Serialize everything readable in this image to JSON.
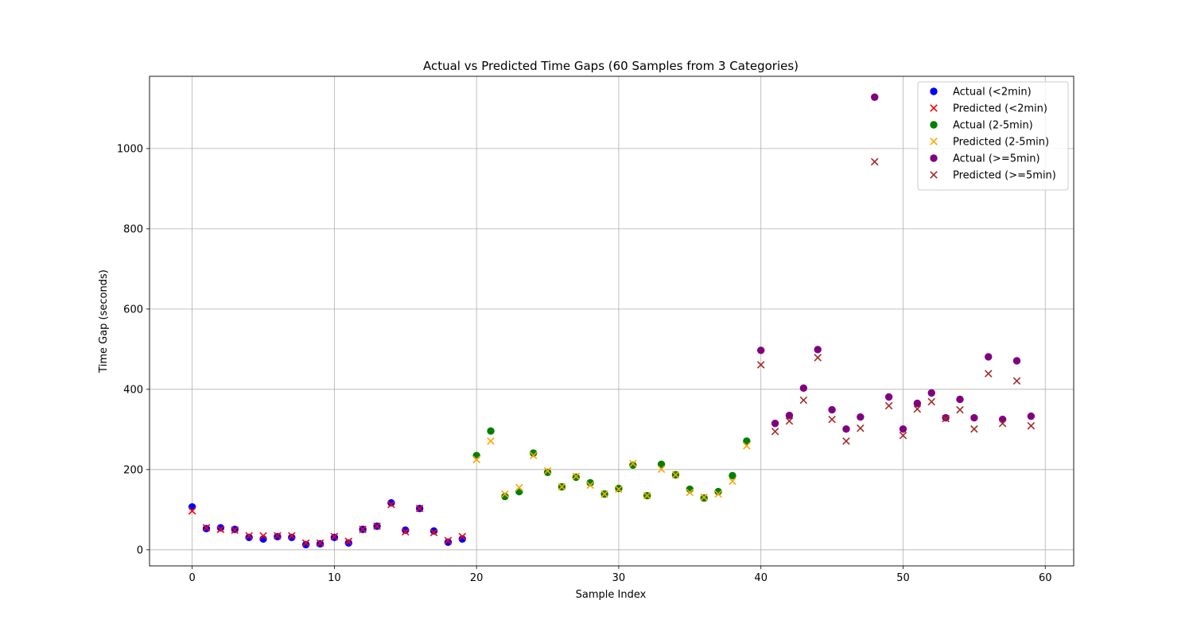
{
  "chart_data": {
    "type": "scatter",
    "title": "Actual vs Predicted Time Gaps (60 Samples from 3 Categories)",
    "xlabel": "Sample Index",
    "ylabel": "Time Gap (seconds)",
    "xlim": [
      -3,
      62
    ],
    "ylim": [
      -40,
      1180
    ],
    "xticks": [
      0,
      10,
      20,
      30,
      40,
      50,
      60
    ],
    "yticks": [
      0,
      200,
      400,
      600,
      800,
      1000
    ],
    "grid": true,
    "legend_position": "top-right",
    "series": [
      {
        "name": "Actual (<2min)",
        "marker": "circle",
        "color": "#0000ff",
        "x": [
          0,
          1,
          2,
          3,
          4,
          5,
          6,
          7,
          8,
          9,
          10,
          11,
          12,
          13,
          14,
          15,
          16,
          17,
          18,
          19
        ],
        "values": [
          107,
          53,
          55,
          51,
          31,
          27,
          33,
          31,
          13,
          15,
          31,
          17,
          51,
          59,
          117,
          49,
          103,
          47,
          19,
          27
        ]
      },
      {
        "name": "Predicted (<2min)",
        "marker": "x",
        "color": "#ff0000",
        "x": [
          0,
          1,
          2,
          3,
          4,
          5,
          6,
          7,
          8,
          9,
          10,
          11,
          12,
          13,
          14,
          15,
          16,
          17,
          18,
          19
        ],
        "values": [
          97,
          55,
          51,
          49,
          35,
          35,
          35,
          35,
          17,
          17,
          33,
          21,
          51,
          59,
          113,
          45,
          103,
          43,
          23,
          33
        ]
      },
      {
        "name": "Actual (2-5min)",
        "marker": "circle",
        "color": "#008000",
        "x": [
          20,
          21,
          22,
          23,
          24,
          25,
          26,
          27,
          28,
          29,
          30,
          31,
          32,
          33,
          34,
          35,
          36,
          37,
          38,
          39
        ],
        "values": [
          235,
          296,
          133,
          145,
          241,
          193,
          157,
          181,
          167,
          139,
          153,
          211,
          135,
          213,
          187,
          151,
          129,
          145,
          185,
          271
        ]
      },
      {
        "name": "Predicted (2-5min)",
        "marker": "x",
        "color": "#ffa500",
        "x": [
          20,
          21,
          22,
          23,
          24,
          25,
          26,
          27,
          28,
          29,
          30,
          31,
          32,
          33,
          34,
          35,
          36,
          37,
          38,
          39
        ],
        "values": [
          225,
          271,
          139,
          155,
          235,
          197,
          157,
          183,
          161,
          139,
          151,
          215,
          135,
          201,
          187,
          143,
          131,
          139,
          171,
          259
        ]
      },
      {
        "name": "Actual (>=5min)",
        "marker": "circle",
        "color": "#800080",
        "x": [
          40,
          41,
          42,
          43,
          44,
          45,
          46,
          47,
          48,
          49,
          50,
          51,
          52,
          53,
          54,
          55,
          56,
          57,
          58,
          59
        ],
        "values": [
          497,
          315,
          335,
          403,
          499,
          349,
          301,
          331,
          1128,
          381,
          301,
          365,
          391,
          329,
          375,
          329,
          481,
          325,
          471,
          333
        ]
      },
      {
        "name": "Predicted (>=5min)",
        "marker": "x",
        "color": "#a52a2a",
        "x": [
          40,
          41,
          42,
          43,
          44,
          45,
          46,
          47,
          48,
          49,
          50,
          51,
          52,
          53,
          54,
          55,
          56,
          57,
          58,
          59
        ],
        "values": [
          461,
          295,
          321,
          373,
          479,
          325,
          271,
          303,
          967,
          359,
          285,
          351,
          369,
          327,
          349,
          301,
          439,
          315,
          421,
          309
        ]
      }
    ]
  }
}
